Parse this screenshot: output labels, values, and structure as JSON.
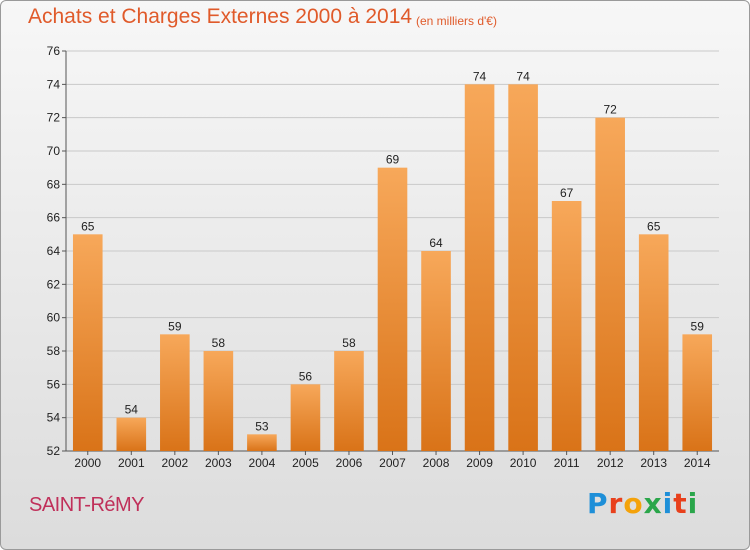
{
  "header": {
    "title": "Achats et Charges Externes 2000 à 2014",
    "subtitle": "(en milliers d'€)"
  },
  "footer": {
    "city": "SAINT-RéMY",
    "logo": {
      "text": "Proxiti",
      "colors": [
        "#1e8fd8",
        "#e8401c",
        "#f4a20a",
        "#2aa64a",
        "#1e8fd8",
        "#e8401c",
        "#2aa64a"
      ]
    }
  },
  "colors": {
    "bar_light": "#f7a85a",
    "bar_dark": "#d97318",
    "grid": "#c9c9c9"
  },
  "chart_data": {
    "type": "bar",
    "categories": [
      "2000",
      "2001",
      "2002",
      "2003",
      "2004",
      "2005",
      "2006",
      "2007",
      "2008",
      "2009",
      "2010",
      "2011",
      "2012",
      "2013",
      "2014"
    ],
    "values": [
      65,
      54,
      59,
      58,
      53,
      56,
      58,
      69,
      64,
      74,
      74,
      67,
      72,
      65,
      59
    ],
    "ylim": [
      52,
      76
    ],
    "yticks": [
      52,
      54,
      56,
      58,
      60,
      62,
      64,
      66,
      68,
      70,
      72,
      74,
      76
    ],
    "grid": true,
    "xlabel": "",
    "ylabel": ""
  }
}
